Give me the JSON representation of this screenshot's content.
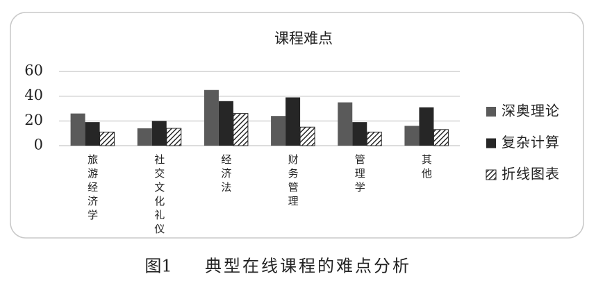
{
  "chart_data": {
    "type": "bar",
    "title": "课程难点",
    "categories": [
      "旅游经济学",
      "社交文化礼仪",
      "经济法",
      "财务管理",
      "管理学",
      "其他"
    ],
    "series": [
      {
        "name": "深奥理论",
        "color": "#5a5a5a",
        "values": [
          26,
          14,
          45,
          24,
          35,
          16
        ]
      },
      {
        "name": "复杂计算",
        "color": "#262626",
        "values": [
          19,
          20,
          36,
          39,
          19,
          31
        ]
      },
      {
        "name": "折线图表",
        "color": "#262626",
        "pattern": "hatch",
        "values": [
          11,
          14,
          26,
          15,
          11,
          13
        ]
      }
    ],
    "ylim": [
      0,
      60
    ],
    "yticks": [
      0,
      20,
      40,
      60
    ],
    "grid": true,
    "legend": "right"
  },
  "caption": {
    "label": "图1",
    "text": "典型在线课程的难点分析"
  }
}
